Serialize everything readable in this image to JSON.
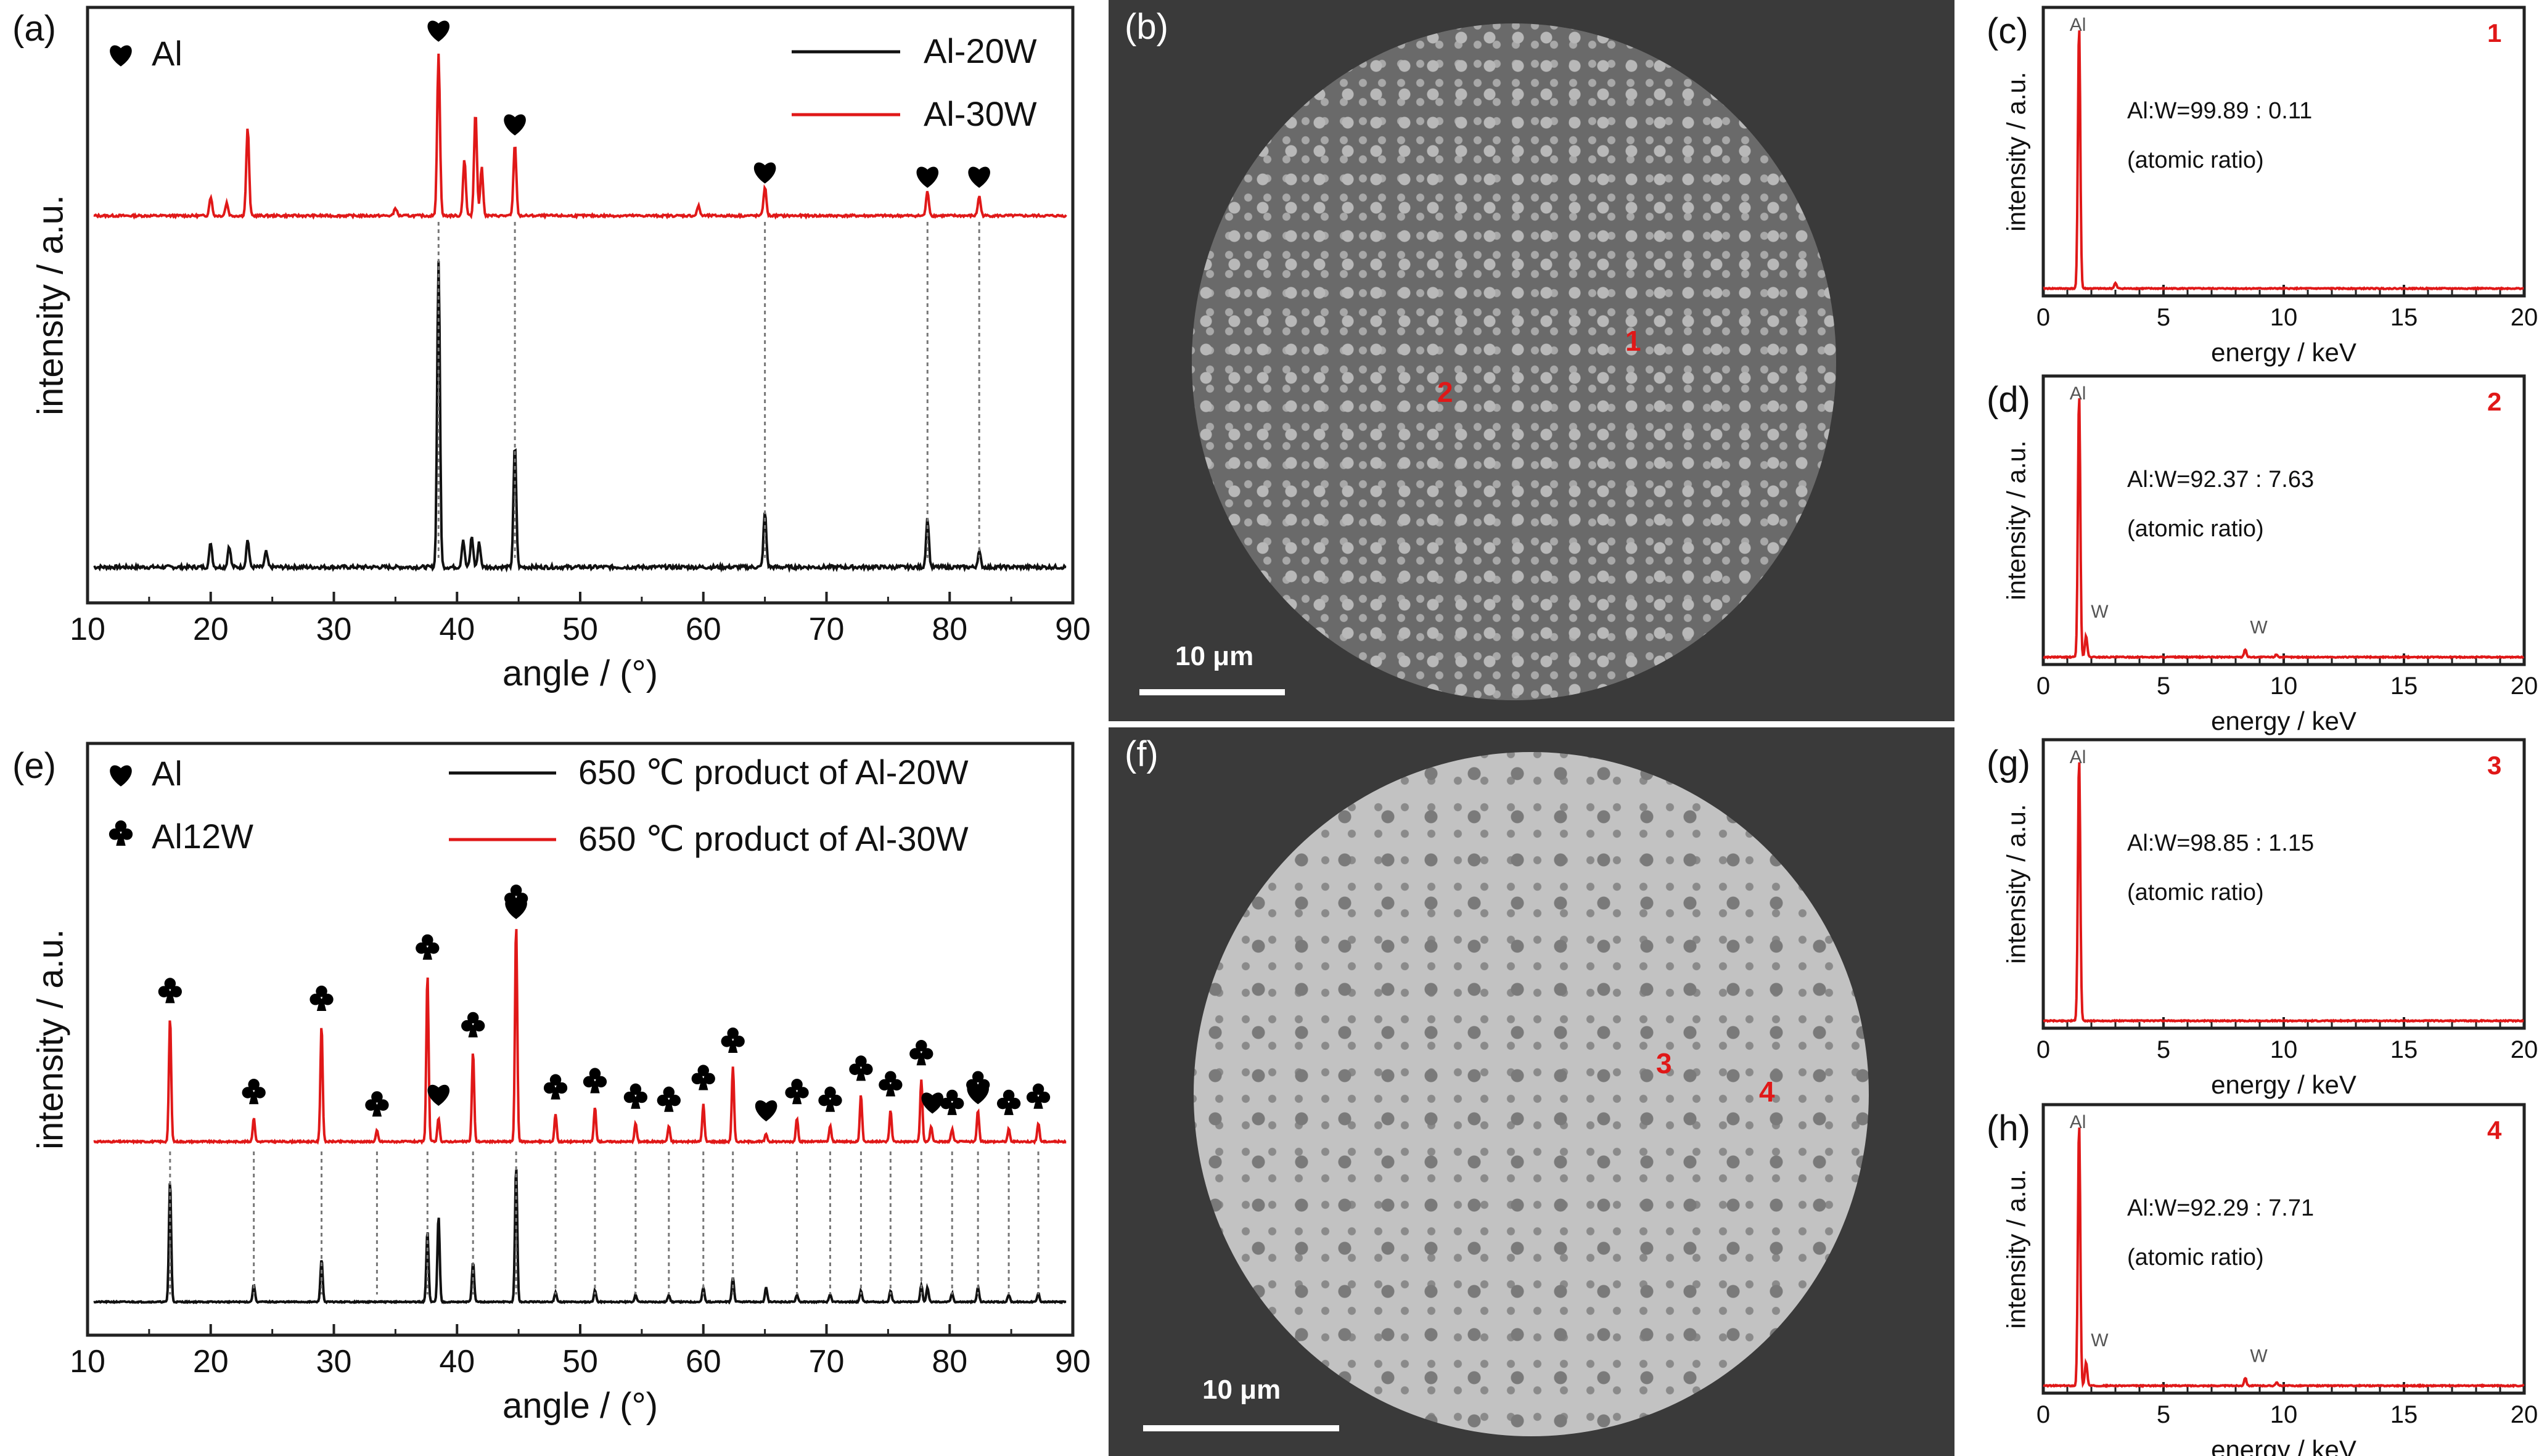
{
  "colors": {
    "black_series": "#111111",
    "red_series": "#e01818",
    "frame": "#222222",
    "micro_bg": "#3a3a3a",
    "disc_b": "#6a6a6a",
    "disc_f": "#c2c2c2"
  },
  "chart_data": [
    {
      "panel": "(a)",
      "type": "line",
      "xlabel": "angle / (°)",
      "ylabel": "intensity / a.u.",
      "xlim": [
        10,
        90
      ],
      "ticks": [
        "10",
        "20",
        "30",
        "40",
        "50",
        "60",
        "70",
        "80",
        "90"
      ],
      "legend": [
        "Al"
      ],
      "series": [
        {
          "name": "Al-20W",
          "color": "#111111",
          "peaks": [
            [
              20,
              0.08
            ],
            [
              21.5,
              0.07
            ],
            [
              23,
              0.09
            ],
            [
              24.5,
              0.05
            ],
            [
              38.5,
              1.0
            ],
            [
              40.5,
              0.09
            ],
            [
              41.2,
              0.1
            ],
            [
              41.8,
              0.08
            ],
            [
              44.7,
              0.4
            ],
            [
              65,
              0.18
            ],
            [
              78.2,
              0.16
            ],
            [
              82.4,
              0.05
            ]
          ]
        },
        {
          "name": "Al-30W",
          "color": "#e01818",
          "peaks": [
            [
              20,
              0.12
            ],
            [
              21.3,
              0.08
            ],
            [
              23,
              0.55
            ],
            [
              35,
              0.05
            ],
            [
              38.5,
              1.0
            ],
            [
              40.6,
              0.35
            ],
            [
              41.5,
              0.65
            ],
            [
              42,
              0.3
            ],
            [
              44.7,
              0.45
            ],
            [
              59.6,
              0.06
            ],
            [
              65,
              0.18
            ],
            [
              78.2,
              0.15
            ],
            [
              82.4,
              0.12
            ]
          ]
        }
      ],
      "al_markers": [
        38.5,
        44.7,
        65,
        78.2,
        82.4
      ]
    },
    {
      "panel": "(e)",
      "type": "line",
      "xlabel": "angle / (°)",
      "ylabel": "intensity / a.u.",
      "xlim": [
        10,
        90
      ],
      "ticks": [
        "10",
        "20",
        "30",
        "40",
        "50",
        "60",
        "70",
        "80",
        "90"
      ],
      "legend": [
        "Al",
        "Al12W"
      ],
      "series": [
        {
          "name": "650 ℃ product of Al-20W",
          "color": "#111111",
          "peaks": [
            [
              16.7,
              0.85
            ],
            [
              23.5,
              0.12
            ],
            [
              29,
              0.3
            ],
            [
              37.6,
              0.5
            ],
            [
              38.5,
              0.6
            ],
            [
              41.3,
              0.28
            ],
            [
              44.8,
              0.95
            ],
            [
              48,
              0.07
            ],
            [
              51.2,
              0.08
            ],
            [
              54.5,
              0.05
            ],
            [
              57.2,
              0.05
            ],
            [
              60,
              0.1
            ],
            [
              62.4,
              0.17
            ],
            [
              65.1,
              0.1
            ],
            [
              67.6,
              0.05
            ],
            [
              70.3,
              0.05
            ],
            [
              72.8,
              0.08
            ],
            [
              75.2,
              0.08
            ],
            [
              77.7,
              0.12
            ],
            [
              78.2,
              0.1
            ],
            [
              80.2,
              0.06
            ],
            [
              82.3,
              0.1
            ],
            [
              84.8,
              0.05
            ],
            [
              87.2,
              0.06
            ]
          ]
        },
        {
          "name": "650 ℃ product of Al-30W",
          "color": "#e01818",
          "peaks": [
            [
              16.7,
              0.8
            ],
            [
              23.5,
              0.15
            ],
            [
              29,
              0.75
            ],
            [
              33.5,
              0.07
            ],
            [
              37.6,
              1.08
            ],
            [
              38.5,
              0.15
            ],
            [
              41.3,
              0.58
            ],
            [
              44.8,
              1.4
            ],
            [
              48,
              0.18
            ],
            [
              51.2,
              0.22
            ],
            [
              54.5,
              0.12
            ],
            [
              57.2,
              0.1
            ],
            [
              60,
              0.24
            ],
            [
              62.4,
              0.48
            ],
            [
              65.1,
              0.05
            ],
            [
              67.6,
              0.15
            ],
            [
              70.3,
              0.1
            ],
            [
              72.8,
              0.3
            ],
            [
              75.2,
              0.2
            ],
            [
              77.7,
              0.4
            ],
            [
              78.5,
              0.1
            ],
            [
              80.2,
              0.08
            ],
            [
              82.3,
              0.2
            ],
            [
              84.8,
              0.08
            ],
            [
              87.2,
              0.12
            ]
          ]
        }
      ],
      "al_markers": [
        38.5,
        44.8,
        65.1,
        78.6,
        82.3
      ],
      "al12w_markers": [
        16.7,
        23.5,
        29,
        33.5,
        37.6,
        41.3,
        44.8,
        48,
        51.2,
        54.5,
        57.2,
        60,
        62.4,
        67.6,
        70.3,
        72.8,
        75.2,
        77.7,
        80.2,
        82.3,
        84.8,
        87.2
      ]
    },
    {
      "panel": "(c)",
      "type": "line",
      "xlabel": "energy / keV",
      "ylabel": "intensity / a.u.",
      "xlim": [
        0,
        20
      ],
      "ticks": [
        "0",
        "5",
        "10",
        "15",
        "20"
      ],
      "point": "1",
      "ratio": "Al:W=99.89 : 0.11",
      "note": "(atomic ratio)",
      "peak_labels": [
        {
          "text": "Al",
          "x": 1.49
        }
      ],
      "peaks": [
        [
          1.49,
          1.0
        ],
        [
          3.0,
          0.02
        ]
      ]
    },
    {
      "panel": "(d)",
      "type": "line",
      "xlabel": "energy / keV",
      "ylabel": "intensity / a.u.",
      "xlim": [
        0,
        20
      ],
      "ticks": [
        "0",
        "5",
        "10",
        "15",
        "20"
      ],
      "point": "2",
      "ratio": "Al:W=92.37 : 7.63",
      "note": "(atomic ratio)",
      "peak_labels": [
        {
          "text": "Al",
          "x": 1.49
        },
        {
          "text": "W",
          "x": 1.78
        },
        {
          "text": "W",
          "x": 8.4
        }
      ],
      "peaks": [
        [
          1.49,
          1.0
        ],
        [
          1.78,
          0.08
        ],
        [
          8.4,
          0.03
        ],
        [
          9.7,
          0.01
        ]
      ]
    },
    {
      "panel": "(g)",
      "type": "line",
      "xlabel": "energy / keV",
      "ylabel": "intensity / a.u.",
      "xlim": [
        0,
        20
      ],
      "ticks": [
        "0",
        "5",
        "10",
        "15",
        "20"
      ],
      "point": "3",
      "ratio": "Al:W=98.85 : 1.15",
      "note": "(atomic ratio)",
      "peak_labels": [
        {
          "text": "Al",
          "x": 1.49
        }
      ],
      "peaks": [
        [
          1.49,
          1.0
        ]
      ]
    },
    {
      "panel": "(h)",
      "type": "line",
      "xlabel": "energy / keV",
      "ylabel": "intensity / a.u.",
      "xlim": [
        0,
        20
      ],
      "ticks": [
        "0",
        "5",
        "10",
        "15",
        "20"
      ],
      "point": "4",
      "ratio": "Al:W=92.29 : 7.71",
      "note": "(atomic ratio)",
      "peak_labels": [
        {
          "text": "Al",
          "x": 1.49
        },
        {
          "text": "W",
          "x": 1.78
        },
        {
          "text": "W",
          "x": 8.4
        }
      ],
      "peaks": [
        [
          1.49,
          1.0
        ],
        [
          1.78,
          0.09
        ],
        [
          8.4,
          0.03
        ],
        [
          9.7,
          0.012
        ]
      ]
    }
  ],
  "micrographs": [
    {
      "label": "(b)",
      "scale": "10 μm",
      "points": [
        "1",
        "2"
      ]
    },
    {
      "label": "(f)",
      "scale": "10 μm",
      "points": [
        "3",
        "4"
      ]
    }
  ]
}
